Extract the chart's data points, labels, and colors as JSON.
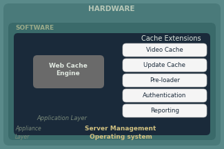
{
  "bg_outer": "#5a8a8a",
  "bg_hardware": "#4a7a7a",
  "bg_software_outer": "#3a6a6a",
  "bg_software_inner": "#1a2a3a",
  "bg_web_cache": "#6a6a6a",
  "hardware_label": "HARDWARE",
  "software_label": "SOFTWARE",
  "cache_ext_label": "Cache Extensions",
  "web_cache_label": "Web Cache\nEngine",
  "app_layer_label": "Application Layer",
  "appliance_layer_label": "Appliance\nLayer",
  "server_mgmt_label": "Server Management",
  "os_label": "Operating system",
  "extensions": [
    "Video Cache",
    "Update Cache",
    "Pre-loader",
    "Authentication",
    "Reporting"
  ],
  "hardware_text_color": "#b8c8b8",
  "software_text_color": "#9aaa8a",
  "cache_ext_title_color": "#e0e8e0",
  "ext_text_color": "#1a2a3a",
  "web_cache_text_color": "#e0e8e0",
  "app_layer_color": "#7a8a7a",
  "appliance_layer_color": "#7a8a7a",
  "server_mgmt_color": "#d0c080",
  "os_color": "#d0c080",
  "ext_box_color": "#f5f5f5",
  "ext_box_edge": "#cccccc"
}
